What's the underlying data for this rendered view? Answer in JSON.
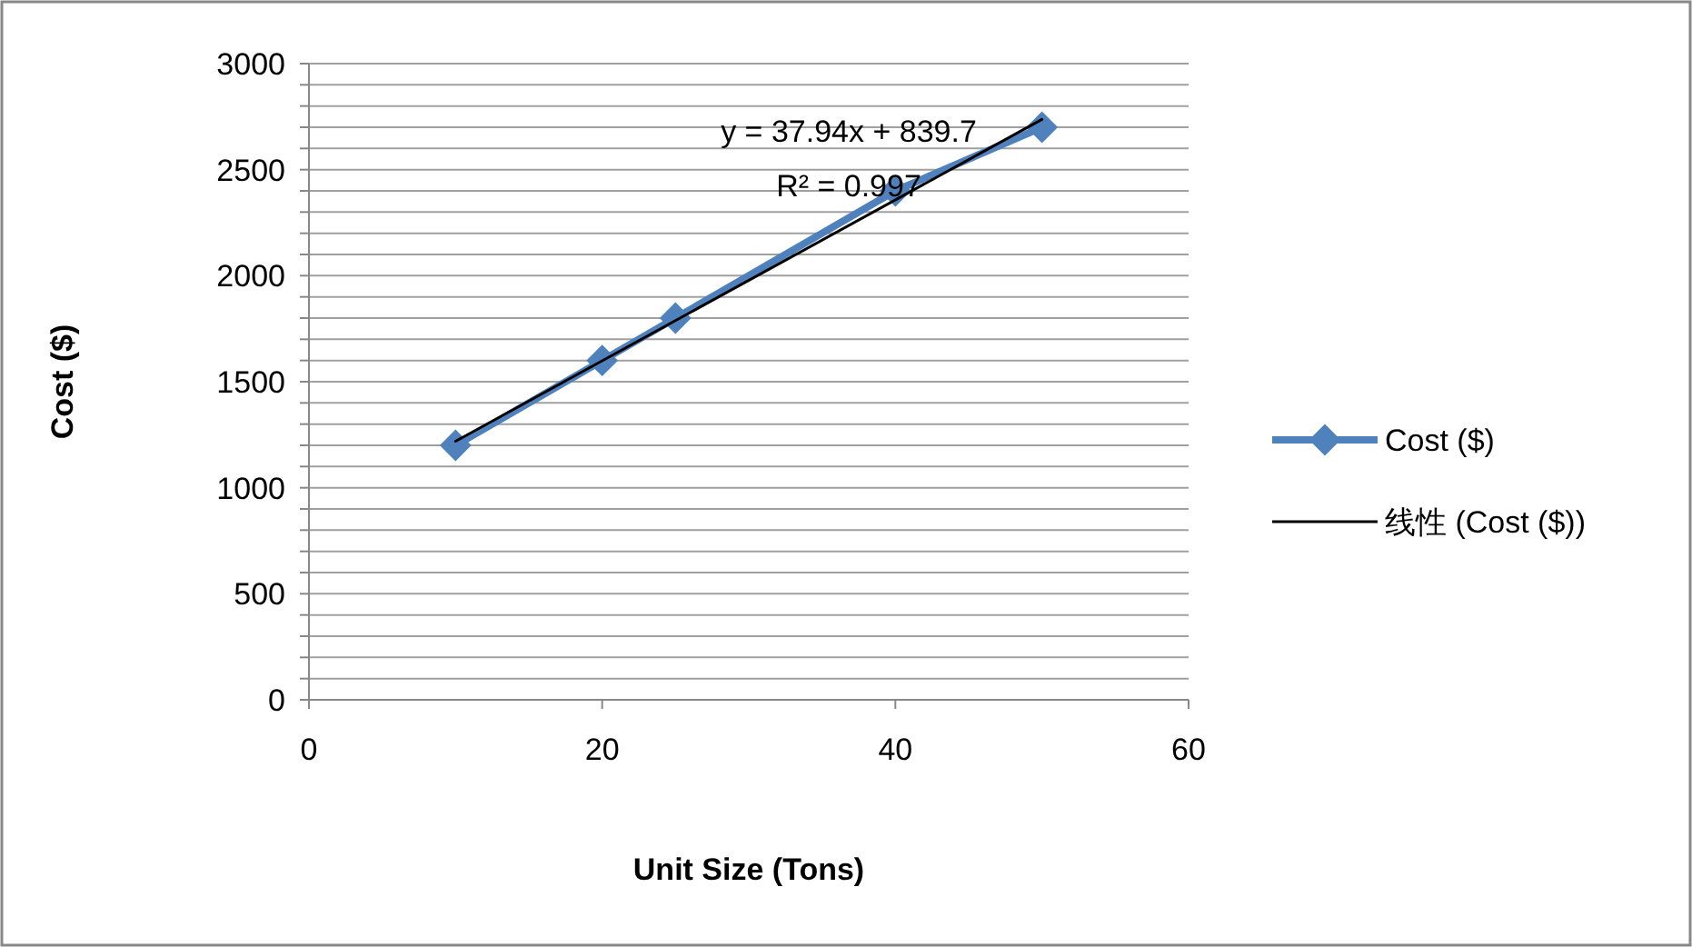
{
  "chart_data": {
    "type": "line",
    "xlabel": "Unit Size (Tons)",
    "ylabel": "Cost ($)",
    "xlim": [
      0,
      60
    ],
    "xticks": [
      0,
      20,
      40,
      60
    ],
    "ylim": [
      0,
      3000
    ],
    "yticks": [
      0,
      {
        "value": 100,
        "label": null
      },
      {
        "value": 200,
        "label": null
      },
      {
        "value": 300,
        "label": null
      },
      {
        "value": 400,
        "label": null
      },
      500,
      {
        "value": 600,
        "label": null
      },
      {
        "value": 700,
        "label": null
      },
      {
        "value": 800,
        "label": null
      },
      {
        "value": 900,
        "label": null
      },
      1000,
      {
        "value": 1100,
        "label": null
      },
      {
        "value": 1200,
        "label": null
      },
      {
        "value": 1300,
        "label": null
      },
      {
        "value": 1400,
        "label": null
      },
      1500,
      {
        "value": 1600,
        "label": null
      },
      {
        "value": 1700,
        "label": null
      },
      {
        "value": 1800,
        "label": null
      },
      {
        "value": 1900,
        "label": null
      },
      2000,
      {
        "value": 2100,
        "label": null
      },
      {
        "value": 2200,
        "label": null
      },
      {
        "value": 2300,
        "label": null
      },
      {
        "value": 2400,
        "label": null
      },
      2500,
      {
        "value": 2600,
        "label": null
      },
      {
        "value": 2700,
        "label": null
      },
      {
        "value": 2800,
        "label": null
      },
      {
        "value": 2900,
        "label": null
      },
      3000
    ],
    "grid": "y",
    "legend": "right",
    "annotations": [
      "y = 37.94x + 839.7",
      "R² = 0.997"
    ],
    "series": [
      {
        "name": "Cost ($)",
        "color": "#4f81bd",
        "marker": "diamond",
        "x": [
          10,
          20,
          25,
          40,
          50
        ],
        "values": [
          1200,
          1600,
          1800,
          2400,
          2700
        ]
      },
      {
        "name": "线性 (Cost ($))",
        "color": "#000000",
        "marker": "none",
        "x": [
          10,
          50
        ],
        "values": [
          1219.1,
          2736.7
        ]
      }
    ]
  }
}
